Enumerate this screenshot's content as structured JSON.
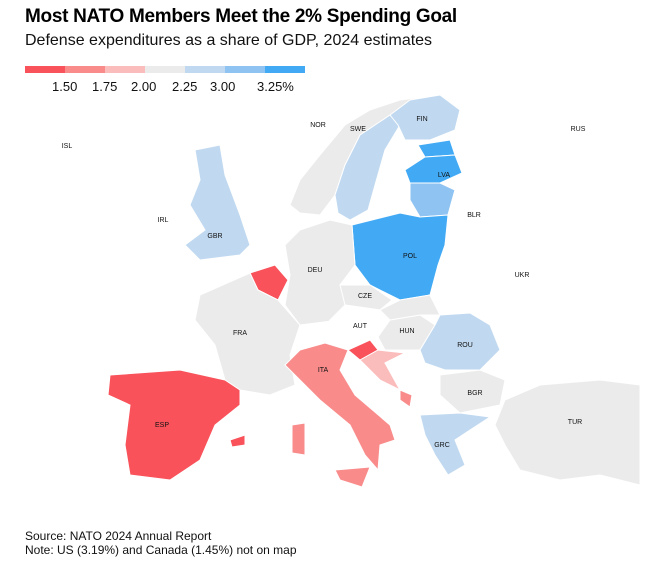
{
  "title": "Most NATO Members Meet the 2% Spending Goal",
  "subtitle": "Defense expenditures as a share of GDP, 2024 estimates",
  "legend": {
    "colors": [
      "#f9525a",
      "#f98b8b",
      "#fbbcbc",
      "#ebebeb",
      "#c0d9f0",
      "#8fc3f2",
      "#42aaf5"
    ],
    "labels": [
      "1.50",
      "1.75",
      "2.00",
      "2.25",
      "3.00",
      "3.25%"
    ]
  },
  "countries": {
    "ISL": "ISL",
    "NOR": "NOR",
    "SWE": "SWE",
    "FIN": "FIN",
    "RUS": "RUS",
    "IRL": "IRL",
    "GBR": "GBR",
    "LVA": "LVA",
    "BLR": "BLR",
    "POL": "POL",
    "DEU": "DEU",
    "CZE": "CZE",
    "UKR": "UKR",
    "FRA": "FRA",
    "AUT": "AUT",
    "HUN": "HUN",
    "ROU": "ROU",
    "ITA": "ITA",
    "BGR": "BGR",
    "ESP": "ESP",
    "GRC": "GRC",
    "TUR": "TUR"
  },
  "source": "Source: NATO 2024 Annual Report",
  "note": "Note: US (3.19%) and Canada (1.45%) not on map"
}
